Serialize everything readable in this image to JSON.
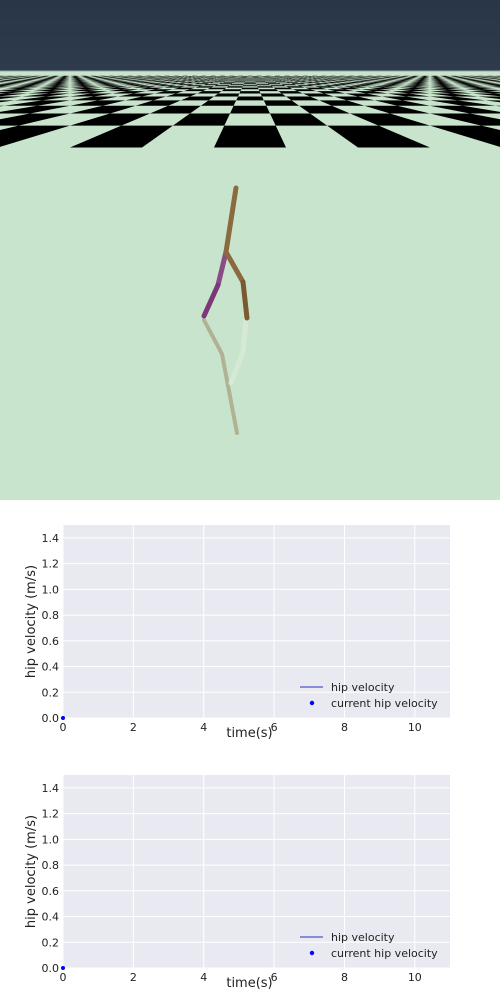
{
  "scene": {
    "sky_color": "#2d3b4d",
    "floor_light_color": "#c8e4cc",
    "floor_dark_color": "#000000",
    "thigh_color": "#8a6a3f",
    "shin_left_color": "#8a4c86"
  },
  "colors": {
    "plot_bg": "#e9eaf1",
    "grid": "#ffffff",
    "line": "#4b57c8",
    "point": "#0000ff"
  },
  "chart_data": [
    {
      "type": "line",
      "title": "",
      "xlabel": "time(s)",
      "ylabel": "hip velocity (m/s)",
      "xlim": [
        0,
        11
      ],
      "ylim": [
        0,
        1.5
      ],
      "x_ticks": [
        0,
        2,
        4,
        6,
        8,
        10
      ],
      "x_tick_labels": [
        "0",
        "2",
        "4",
        "6",
        "8",
        "10"
      ],
      "y_ticks": [
        0,
        0.2,
        0.4,
        0.6,
        0.8,
        1.0,
        1.2,
        1.4
      ],
      "y_tick_labels": [
        "0.0",
        "0.2",
        "0.4",
        "0.6",
        "0.8",
        "1.0",
        "1.2",
        "1.4"
      ],
      "grid": true,
      "legend_position": "lower-right",
      "series": [
        {
          "name": "hip velocity",
          "kind": "line",
          "x": [
            0
          ],
          "y": [
            0
          ]
        },
        {
          "name": "current hip velocity",
          "kind": "point",
          "x": [
            0
          ],
          "y": [
            0
          ]
        }
      ]
    },
    {
      "type": "line",
      "title": "",
      "xlabel": "time(s)",
      "ylabel": "hip velocity (m/s)",
      "xlim": [
        0,
        11
      ],
      "ylim": [
        0,
        1.5
      ],
      "x_ticks": [
        0,
        2,
        4,
        6,
        8,
        10
      ],
      "x_tick_labels": [
        "0",
        "2",
        "4",
        "6",
        "8",
        "10"
      ],
      "y_ticks": [
        0,
        0.2,
        0.4,
        0.6,
        0.8,
        1.0,
        1.2,
        1.4
      ],
      "y_tick_labels": [
        "0.0",
        "0.2",
        "0.4",
        "0.6",
        "0.8",
        "1.0",
        "1.2",
        "1.4"
      ],
      "grid": true,
      "legend_position": "lower-right",
      "series": [
        {
          "name": "hip velocity",
          "kind": "line",
          "x": [
            0
          ],
          "y": [
            0
          ]
        },
        {
          "name": "current hip velocity",
          "kind": "point",
          "x": [
            0
          ],
          "y": [
            0
          ]
        }
      ]
    }
  ]
}
